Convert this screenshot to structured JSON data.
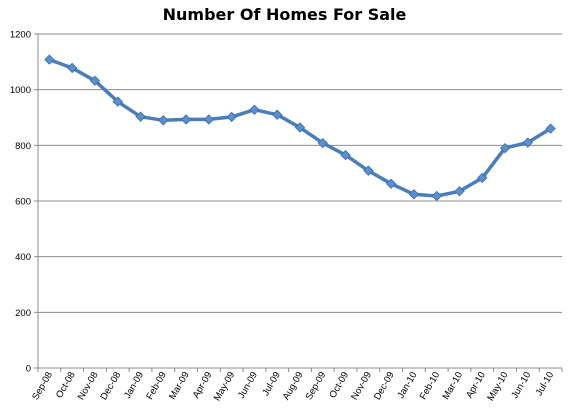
{
  "chart_data": {
    "type": "line",
    "title": "Number Of Homes For Sale",
    "xlabel": "",
    "ylabel": "",
    "ylim": [
      0,
      1200
    ],
    "yticks": [
      0,
      200,
      400,
      600,
      800,
      1000,
      1200
    ],
    "grid": true,
    "legend": "none",
    "categories": [
      "Sep-08",
      "Oct-08",
      "Nov-08",
      "Dec-08",
      "Jan-09",
      "Feb-09",
      "Mar-09",
      "Apr-09",
      "May-09",
      "Jun-09",
      "Jul-09",
      "Aug-09",
      "Sep-09",
      "Oct-09",
      "Nov-09",
      "Dec-09",
      "Jan-10",
      "Feb-10",
      "Mar-10",
      "Apr-10",
      "May-10",
      "Jun-10",
      "Jul-10"
    ],
    "series": [
      {
        "values": [
          1108,
          1078,
          1032,
          957,
          903,
          890,
          893,
          893,
          902,
          928,
          910,
          864,
          808,
          765,
          709,
          662,
          624,
          618,
          635,
          683,
          790,
          810,
          860
        ],
        "color": "#4a7ebb",
        "marker_color": "#5b8fd0"
      }
    ]
  }
}
